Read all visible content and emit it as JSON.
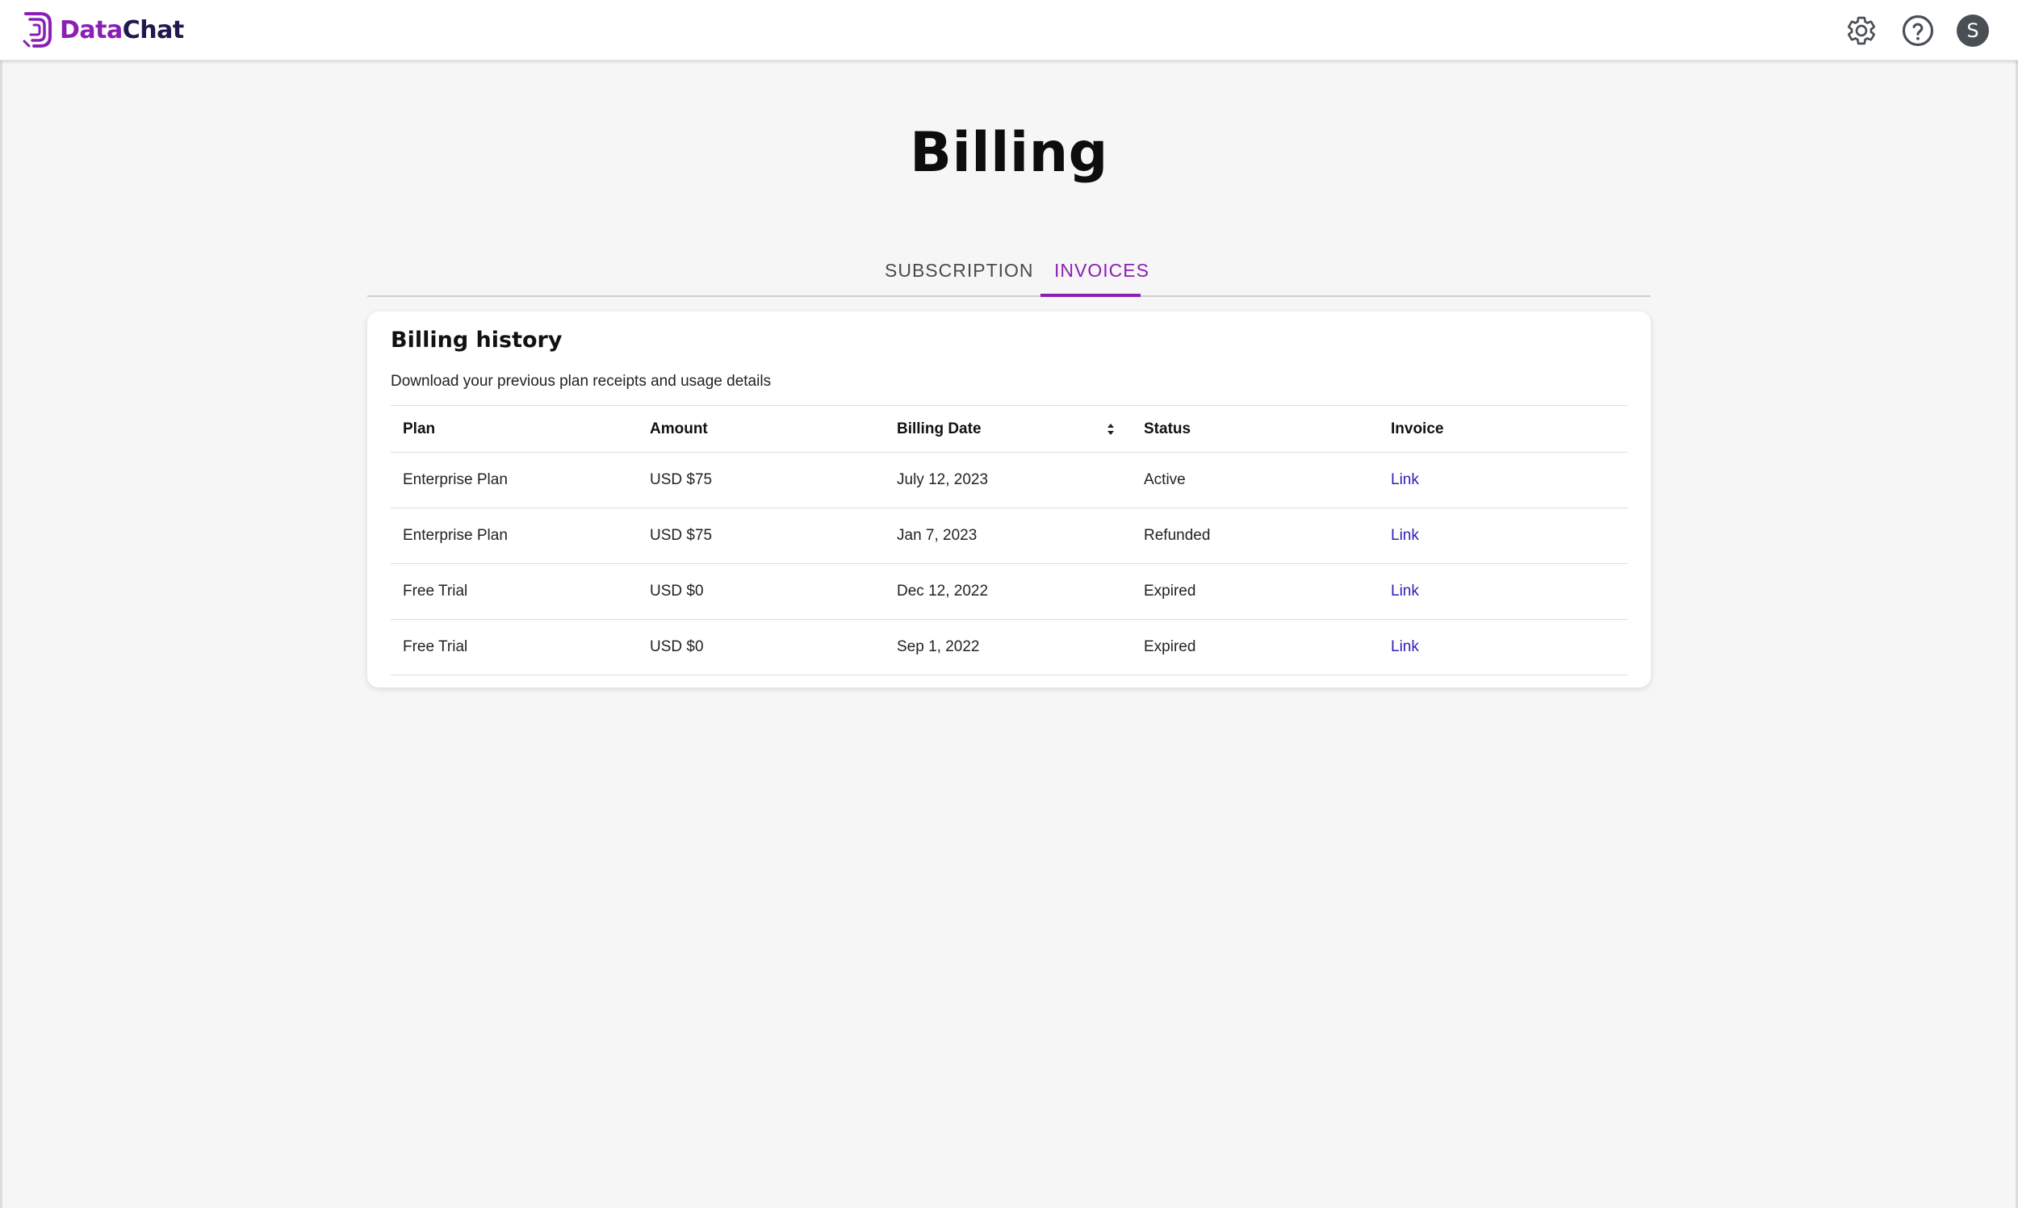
{
  "header": {
    "logo_text_part1": "Data",
    "logo_text_part2": "Chat",
    "settings_icon": "gear-icon",
    "help_icon": "help-circle-icon",
    "avatar_initial": "S"
  },
  "page": {
    "title": "Billing"
  },
  "tabs": [
    {
      "label": "SUBSCRIPTION",
      "active": false
    },
    {
      "label": "INVOICES",
      "active": true
    }
  ],
  "billing": {
    "title": "Billing history",
    "subtitle": "Download your previous plan receipts and usage details",
    "columns": [
      "Plan",
      "Amount",
      "Billing Date",
      "Status",
      "Invoice"
    ],
    "rows": [
      {
        "plan": "Enterprise Plan",
        "amount": "USD $75",
        "date": "July 12, 2023",
        "status": "Active",
        "invoice": "Link"
      },
      {
        "plan": "Enterprise Plan",
        "amount": "USD $75",
        "date": "Jan 7, 2023",
        "status": "Refunded",
        "invoice": "Link"
      },
      {
        "plan": "Free Trial",
        "amount": "USD $0",
        "date": "Dec 12, 2022",
        "status": "Expired",
        "invoice": "Link"
      },
      {
        "plan": "Free Trial",
        "amount": "USD $0",
        "date": "Sep 1, 2022",
        "status": "Expired",
        "invoice": "Link"
      }
    ]
  },
  "colors": {
    "accent": "#8a1fb5",
    "link": "#2a1fb5",
    "brand_dark": "#1f1a4d"
  }
}
